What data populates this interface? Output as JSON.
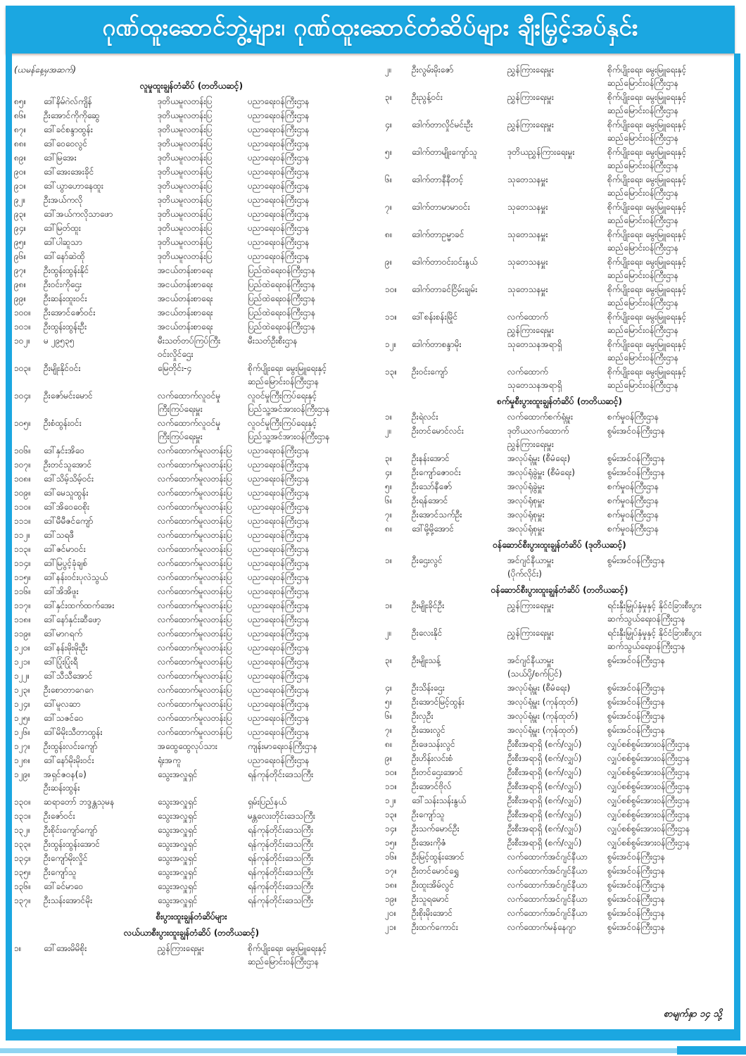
{
  "banner": {
    "title": "ဂုဏ်ထူးဆောင်ဘွဲ့များ၊ ဂုဏ်ထူးဆောင်တံဆိပ်များ ချီးမြှင့်အပ်နှင်း"
  },
  "page_note": "စာမျက်နှာ ၁၄ သို့",
  "colors": {
    "accent_blue": "#1BA7E1",
    "light_blue": "#8ed4f2",
    "text": "#161616"
  },
  "columns": {
    "left": [
      {
        "t": "note",
        "text": "(ယမန်နေ့မှအဆက်)"
      },
      {
        "t": "h",
        "text": "လူမှုထူးချွန်တံဆိပ် (တတိယဆင့်)"
      },
      {
        "t": "e",
        "n": "၈၅။",
        "name": "ဒေါ်နိမ်ဂဲလ်ကျိန်",
        "pos": "ဒုတိယမူလတန်းပြ",
        "min": "ပညာရေးဝန်ကြီးဌာန"
      },
      {
        "t": "e",
        "n": "၈၆။",
        "name": "ဦးအောင်ကိုကိုဆွေ",
        "pos": "ဒုတိယမူလတန်းပြ",
        "min": "ပညာရေးဝန်ကြီးဌာန"
      },
      {
        "t": "e",
        "n": "၈၇။",
        "name": "ဒေါ်ခင်စန္ဒာထွန်း",
        "pos": "ဒုတိယမူလတန်းပြ",
        "min": "ပညာရေးဝန်ကြီးဌာန"
      },
      {
        "t": "e",
        "n": "၈၈။",
        "name": "ဒေါ်ဝေဝေလွင်",
        "pos": "ဒုတိယမူလတန်းပြ",
        "min": "ပညာရေးဝန်ကြီးဌာန"
      },
      {
        "t": "e",
        "n": "၈၉။",
        "name": "ဒေါ်မြအေး",
        "pos": "ဒုတိယမူလတန်းပြ",
        "min": "ပညာရေးဝန်ကြီးဌာန"
      },
      {
        "t": "e",
        "n": "၉၀။",
        "name": "ဒေါ်အေးအေးခိုင်",
        "pos": "ဒုတိယမူလတန်းပြ",
        "min": "ပညာရေးဝန်ကြီးဌာန"
      },
      {
        "t": "e",
        "n": "၉၁။",
        "name": "ဒေါ်ယွာဟောနေထူး",
        "pos": "ဒုတိယမူလတန်းပြ",
        "min": "ပညာရေးဝန်ကြီးဌာန"
      },
      {
        "t": "e",
        "n": "၉၂။",
        "name": "ဦးအယ်ကလို",
        "pos": "ဒုတိယမူလတန်းပြ",
        "min": "ပညာရေးဝန်ကြီးဌာန"
      },
      {
        "t": "e",
        "n": "၉၃။",
        "name": "ဒေါ်အယ်ကလိုသာဖော",
        "pos": "ဒုတိယမူလတန်းပြ",
        "min": "ပညာရေးဝန်ကြီးဌာန"
      },
      {
        "t": "e",
        "n": "၉၄။",
        "name": "ဒေါ်မြတ်ထူး",
        "pos": "ဒုတိယမူလတန်းပြ",
        "min": "ပညာရေးဝန်ကြီးဌာန"
      },
      {
        "t": "e",
        "n": "၉၅။",
        "name": "ဒေါ်ပါဆူသာ",
        "pos": "ဒုတိယမူလတန်းပြ",
        "min": "ပညာရေးဝန်ကြီးဌာန"
      },
      {
        "t": "e",
        "n": "၉၆။",
        "name": "ဒေါ်နော်ဆဲထို",
        "pos": "ဒုတိယမူလတန်းပြ",
        "min": "ပညာရေးဝန်ကြီးဌာန"
      },
      {
        "t": "e",
        "n": "၉၇။",
        "name": "ဦးထွန်းထွန်းနိုင်",
        "pos": "အငယ်တန်းစာရေး",
        "min": "ပြည်ထဲရေးဝန်ကြီးဌာန"
      },
      {
        "t": "e",
        "n": "၉၈။",
        "name": "ဦးဝင်းကိုဌေး",
        "pos": "အငယ်တန်းစာရေး",
        "min": "ပြည်ထဲရေးဝန်ကြီးဌာန"
      },
      {
        "t": "e",
        "n": "၉၉။",
        "name": "ဦးဆန်းထူးဝင်း",
        "pos": "အငယ်တန်းစာရေး",
        "min": "ပြည်ထဲရေးဝန်ကြီးဌာန"
      },
      {
        "t": "e",
        "n": "၁၀၀။",
        "name": "ဦးအောင်ဇော်ဝင်း",
        "pos": "အငယ်တန်းစာရေး",
        "min": "ပြည်ထဲရေးဝန်ကြီးဌာန"
      },
      {
        "t": "e",
        "n": "၁၀၁။",
        "name": "ဦးထွန်းထွန်းဦး",
        "pos": "အငယ်တန်းစာရေး",
        "min": "ပြည်ထဲရေးဝန်ကြီးဌာန"
      },
      {
        "t": "e",
        "n": "၁၀၂။",
        "name": "မ ၂၉၅၃၅",
        "pos": "မီးသတ်တပ်ကြပ်ကြီး\nဝင်းလှိုင်ဌေး",
        "min": "မီးသတ်ဦးစီးဌာန"
      },
      {
        "t": "e",
        "n": "၁၀၃။",
        "name": "ဦးမျိုးနိုင်ဝင်း",
        "pos": "မြေတိုင်း-၄",
        "min": "စိုက်ပျိုးရေး၊ မွေးမြူရေးနှင့်\nဆည်မြောင်းဝန်ကြီးဌာန"
      },
      {
        "t": "e",
        "n": "၁၀၄။",
        "name": "ဦးဇော်မင်းမောင်",
        "pos": "လက်ထောက်လူဝင်မှု\nကြီးကြပ်ရေးမှူး",
        "min": "လူဝင်မှုကြီးကြပ်ရေးနှင့်\nပြည်သူ့အင်အားဝန်ကြီးဌာန"
      },
      {
        "t": "e",
        "n": "၁၀၅။",
        "name": "ဦးစံထွန်းဝင်း",
        "pos": "လက်ထောက်လူဝင်မှု\nကြီးကြပ်ရေးမှူး",
        "min": "လူဝင်မှုကြီးကြပ်ရေးနှင့်\nပြည်သူ့အင်အားဝန်ကြီးဌာန"
      },
      {
        "t": "e",
        "n": "၁၀၆။",
        "name": "ဒေါ်နှင်းအိဝေ",
        "pos": "လက်ထောက်မူလတန်းပြ",
        "min": "ပညာရေးဝန်ကြီးဌာန"
      },
      {
        "t": "e",
        "n": "၁၀၇။",
        "name": "ဦးတင်သူအောင်",
        "pos": "လက်ထောက်မူလတန်းပြ",
        "min": "ပညာရေးဝန်ကြီးဌာန"
      },
      {
        "t": "e",
        "n": "၁၀၈။",
        "name": "ဒေါ်သိမ့်သိမ့်ဝင်း",
        "pos": "လက်ထောက်မူလတန်းပြ",
        "min": "ပညာရေးဝန်ကြီးဌာန"
      },
      {
        "t": "e",
        "n": "၁၀၉။",
        "name": "ဒေါ်မေသူထွန်း",
        "pos": "လက်ထောက်မူလတန်းပြ",
        "min": "ပညာရေးဝန်ကြီးဌာန"
      },
      {
        "t": "e",
        "n": "၁၁၀။",
        "name": "ဒေါ်အိဝေဝေစိုး",
        "pos": "လက်ထောက်မူလတန်းပြ",
        "min": "ပညာရေးဝန်ကြီးဌာန"
      },
      {
        "t": "e",
        "n": "၁၁၁။",
        "name": "ဒေါ်မီမီဇင်ကျော်",
        "pos": "လက်ထောက်မူလတန်းပြ",
        "min": "ပညာရေးဝန်ကြီးဌာန"
      },
      {
        "t": "e",
        "n": "၁၁၂။",
        "name": "ဒေါ်သရဖီ",
        "pos": "လက်ထောက်မူလတန်းပြ",
        "min": "ပညာရေးဝန်ကြီးဌာန"
      },
      {
        "t": "e",
        "n": "၁၁၃။",
        "name": "ဒေါ်ဇင်မာဝင်း",
        "pos": "လက်ထောက်မူလတန်းပြ",
        "min": "ပညာရေးဝန်ကြီးဌာန"
      },
      {
        "t": "e",
        "n": "၁၁၄။",
        "name": "ဒေါ်မြပွင့်ခုံချစ်",
        "pos": "လက်ထောက်မူလတန်းပြ",
        "min": "ပညာရေးဝန်ကြီးဌာန"
      },
      {
        "t": "e",
        "n": "၁၁၅။",
        "name": "ဒေါ်နန်းဝင်းပုလဲသွယ်",
        "pos": "လက်ထောက်မူလတန်းပြ",
        "min": "ပညာရေးဝန်ကြီးဌာန"
      },
      {
        "t": "e",
        "n": "၁၁၆။",
        "name": "ဒေါ်အိအိဖူး",
        "pos": "လက်ထောက်မူလတန်းပြ",
        "min": "ပညာရေးဝန်ကြီးဌာန"
      },
      {
        "t": "e",
        "n": "၁၁၇။",
        "name": "ဒေါ်နှင်းထက်ထက်အေး",
        "pos": "လက်ထောက်မူလတန်းပြ",
        "min": "ပညာရေးဝန်ကြီးဌာန"
      },
      {
        "t": "e",
        "n": "၁၁၈။",
        "name": "ဒေါ်နော်နှင်းဆီဖော့",
        "pos": "လက်ထောက်မူလတန်းပြ",
        "min": "ပညာရေးဝန်ကြီးဌာန"
      },
      {
        "t": "e",
        "n": "၁၁၉။",
        "name": "ဒေါ်မာဂရက်",
        "pos": "လက်ထောက်မူလတန်းပြ",
        "min": "ပညာရေးဝန်ကြီးဌာန"
      },
      {
        "t": "e",
        "n": "၁၂၀။",
        "name": "ဒေါ်နန်းမိုးမိုးဦး",
        "pos": "လက်ထောက်မူလတန်းပြ",
        "min": "ပညာရေးဝန်ကြီးဌာန"
      },
      {
        "t": "e",
        "n": "၁၂၁။",
        "name": "ဒေါ်ပြုံးပြုံးရီ",
        "pos": "လက်ထောက်မူလတန်းပြ",
        "min": "ပညာရေးဝန်ကြီးဌာန"
      },
      {
        "t": "e",
        "n": "၁၂၂။",
        "name": "ဒေါ်သီသီအောင်",
        "pos": "လက်ထောက်မူလတန်းပြ",
        "min": "ပညာရေးဝန်ကြီးဌာန"
      },
      {
        "t": "e",
        "n": "၁၂၃။",
        "name": "ဦးစောတာဂေဂေ",
        "pos": "လက်ထောက်မူလတန်းပြ",
        "min": "ပညာရေးဝန်ကြီးဌာန"
      },
      {
        "t": "e",
        "n": "၁၂၄။",
        "name": "ဒေါ်မူလဆာ",
        "pos": "လက်ထောက်မူလတန်းပြ",
        "min": "ပညာရေးဝန်ကြီးဌာန"
      },
      {
        "t": "e",
        "n": "၁၂၅။",
        "name": "ဒေါ်သဇင်ဝေ",
        "pos": "လက်ထောက်မူလတန်းပြ",
        "min": "ပညာရေးဝန်ကြီးဌာန"
      },
      {
        "t": "e",
        "n": "၁၂၆။",
        "name": "ဒေါ်မိမိုးသီတာထွန်း",
        "pos": "လက်ထောက်မူလတန်းပြ",
        "min": "ပညာရေးဝန်ကြီးဌာန"
      },
      {
        "t": "e",
        "n": "၁၂၇။",
        "name": "ဦးထွန်းလင်းကျော်",
        "pos": "အထွေထွေလုပ်သား",
        "min": "ကျန်းမာရေးဝန်ကြီးဌာန"
      },
      {
        "t": "e",
        "n": "၁၂၈။",
        "name": "ဒေါ်နော်မိုးမိုးဝင်း",
        "pos": "ရုံးအကူ",
        "min": "ပညာရေးဝန်ကြီးဌာန"
      },
      {
        "t": "e",
        "n": "၁၂၉။",
        "name": "အရှင်ဇဝန(ခ)\nဦးဆန်းထွန်း",
        "pos": "သွေးအလှူရှင်",
        "min": "ရန်ကုန်တိုင်းဒေသကြီး"
      },
      {
        "t": "e",
        "n": "၁၃၀။",
        "name": "ဆရာတော် ဘဒ္ဒန္တသုမန",
        "pos": "သွေးအလှူရှင်",
        "min": "ရှမ်းပြည်နယ်"
      },
      {
        "t": "e",
        "n": "၁၃၁။",
        "name": "ဦးဇော်ဝင်း",
        "pos": "သွေးအလှူရှင်",
        "min": "မန္တလေးတိုင်းဒေသကြီး"
      },
      {
        "t": "e",
        "n": "၁၃၂။",
        "name": "ဦးစိုင်းကျော်ကျော်",
        "pos": "သွေးအလှူရှင်",
        "min": "ရန်ကုန်တိုင်းဒေသကြီး"
      },
      {
        "t": "e",
        "n": "၁၃၃။",
        "name": "ဦးထွန်းထွန်းအောင်",
        "pos": "သွေးအလှူရှင်",
        "min": "ရန်ကုန်တိုင်းဒေသကြီး"
      },
      {
        "t": "e",
        "n": "၁၃၄။",
        "name": "ဦးကျော်မိုးလှိုင်",
        "pos": "သွေးအလှူရှင်",
        "min": "ရန်ကုန်တိုင်းဒေသကြီး"
      },
      {
        "t": "e",
        "n": "၁၃၅။",
        "name": "ဦးကျော်သူ",
        "pos": "သွေးအလှူရှင်",
        "min": "ရန်ကုန်တိုင်းဒေသကြီး"
      },
      {
        "t": "e",
        "n": "၁၃၆။",
        "name": "ဒေါ်ခင်မာဝေ",
        "pos": "သွေးအလှူရှင်",
        "min": "ရန်ကုန်တိုင်းဒေသကြီး"
      },
      {
        "t": "e",
        "n": "၁၃၇။",
        "name": "ဦးသန်းအောင်မိုး",
        "pos": "သွေးအလှူရှင်",
        "min": "ရန်ကုန်တိုင်းဒေသကြီး"
      },
      {
        "t": "h",
        "text": "စီးပွားထူးချွန်တံဆိပ်များ"
      },
      {
        "t": "h",
        "text": "လယ်ယာစီးပွားထူးချွန်တံဆိပ် (တတိယဆင့်)"
      },
      {
        "t": "e",
        "n": "၁။",
        "name": "ဒေါ်အေးမိမိစိုး",
        "pos": "ညွှန်ကြားရေးမှူး",
        "min": "စိုက်ပျိုးရေး၊ မွေးမြူရေးနှင့်\nဆည်မြောင်းဝန်ကြီးဌာန"
      }
    ],
    "right": [
      {
        "t": "e",
        "n": "၂။",
        "name": "ဦးလွမ်းမိုးဇော်",
        "pos": "ညွှန်ကြားရေးမှူး",
        "min": "စိုက်ပျိုးရေး၊ မွေးမြူရေးနှင့်\nဆည်မြောင်းဝန်ကြီးဌာန"
      },
      {
        "t": "e",
        "n": "၃။",
        "name": "ဦးညွန့်ဝင်း",
        "pos": "ညွှန်ကြားရေးမှူး",
        "min": "စိုက်ပျိုးရေး၊ မွေးမြူရေးနှင့်\nဆည်မြောင်းဝန်ကြီးဌာန"
      },
      {
        "t": "e",
        "n": "၄။",
        "name": "ဒေါက်တာလှိုင်မင်းဦး",
        "pos": "ညွှန်ကြားရေးမှူး",
        "min": "စိုက်ပျိုးရေး၊ မွေးမြူရေးနှင့်\nဆည်မြောင်းဝန်ကြီးဌာန"
      },
      {
        "t": "e",
        "n": "၅။",
        "name": "ဒေါက်တာမျိုးကျော်သူ",
        "pos": "ဒုတိယညွှန်ကြားရေးမှူး",
        "min": "စိုက်ပျိုးရေး၊ မွေးမြူရေးနှင့်\nဆည်မြောင်းဝန်ကြီးဌာန"
      },
      {
        "t": "e",
        "n": "၆။",
        "name": "ဒေါက်တာနီနီတင့်",
        "pos": "သုတေသနမှူး",
        "min": "စိုက်ပျိုးရေး၊ မွေးမြူရေးနှင့်\nဆည်မြောင်းဝန်ကြီးဌာန"
      },
      {
        "t": "e",
        "n": "၇။",
        "name": "ဒေါက်တာမာမာဝင်း",
        "pos": "သုတေသနမှူး",
        "min": "စိုက်ပျိုးရေး၊ မွေးမြူရေးနှင့်\nဆည်မြောင်းဝန်ကြီးဌာန"
      },
      {
        "t": "e",
        "n": "၈။",
        "name": "ဒေါက်တာဥမ္မာခင်",
        "pos": "သုတေသနမှူး",
        "min": "စိုက်ပျိုးရေး၊ မွေးမြူရေးနှင့်\nဆည်မြောင်းဝန်ကြီးဌာန"
      },
      {
        "t": "e",
        "n": "၉။",
        "name": "ဒေါက်တာဝင်းဝင်းနွယ်",
        "pos": "သုတေသနမှူး",
        "min": "စိုက်ပျိုးရေး၊ မွေးမြူရေးနှင့်\nဆည်မြောင်းဝန်ကြီးဌာန"
      },
      {
        "t": "e",
        "n": "၁၀။",
        "name": "ဒေါက်တာခင်ငြိမ်းချမ်း",
        "pos": "သုတေသနမှူး",
        "min": "စိုက်ပျိုးရေး၊ မွေးမြူရေးနှင့်\nဆည်မြောင်းဝန်ကြီးဌာန"
      },
      {
        "t": "e",
        "n": "၁၁။",
        "name": "ဒေါ်စန်းစန်းမြိုင်",
        "pos": "လက်ထောက်\nညွှန်ကြားရေးမှူး",
        "min": "စိုက်ပျိုးရေး၊ မွေးမြူရေးနှင့်\nဆည်မြောင်းဝန်ကြီးဌာန"
      },
      {
        "t": "e",
        "n": "၁၂။",
        "name": "ဒေါက်တာစန္ဒာမိုး",
        "pos": "သုတေသနအရာရှိ",
        "min": "စိုက်ပျိုးရေး၊ မွေးမြူရေးနှင့်\nဆည်မြောင်းဝန်ကြီးဌာန"
      },
      {
        "t": "e",
        "n": "၁၃။",
        "name": "ဦးဝင်းကျော်",
        "pos": "လက်ထောက်\nသုတေသနအရာရှိ",
        "min": "စိုက်ပျိုးရေး၊ မွေးမြူရေးနှင့်\nဆည်မြောင်းဝန်ကြီးဌာန"
      },
      {
        "t": "h",
        "text": "စက်မှုစီးပွားထူးချွန်တံဆိပ် (တတိယဆင့်)"
      },
      {
        "t": "e",
        "n": "၁။",
        "name": "ဦးရဲလင်း",
        "pos": "လက်ထောက်စက်ရုံမှူး",
        "min": "စက်မှုဝန်ကြီးဌာန"
      },
      {
        "t": "e",
        "n": "၂။",
        "name": "ဦးတင်မောင်လင်း",
        "pos": "ဒုတိယလက်ထောက်\nညွှန်ကြားရေးမှူး",
        "min": "စွမ်းအင်ဝန်ကြီးဌာန"
      },
      {
        "t": "e",
        "n": "၃။",
        "name": "ဦးနန်းအောင်",
        "pos": "အလုပ်ရုံမှူး (စီမံရေး)",
        "min": "စွမ်းအင်ဝန်ကြီးဌာန"
      },
      {
        "t": "e",
        "n": "၄။",
        "name": "ဦးကျော်ဇောဝင်း",
        "pos": "အလုပ်ရုံခွဲမှူး (စီမံရေး)",
        "min": "စွမ်းအင်ဝန်ကြီးဌာန"
      },
      {
        "t": "e",
        "n": "၅။",
        "name": "ဦးသော်နီဇော်",
        "pos": "အလုပ်ရုံခွဲမှူး",
        "min": "စက်မှုဝန်ကြီးဌာန"
      },
      {
        "t": "e",
        "n": "၆။",
        "name": "ဦးရန်အောင်",
        "pos": "အလုပ်ရုံစုမှူး",
        "min": "စက်မှုဝန်ကြီးဌာန"
      },
      {
        "t": "e",
        "n": "၇။",
        "name": "ဦးအောင်သက်ဦး",
        "pos": "အလုပ်ရုံစုမှူး",
        "min": "စက်မှုဝန်ကြီးဌာန"
      },
      {
        "t": "e",
        "n": "၈။",
        "name": "ဒေါ်မို့မို့အောင်",
        "pos": "အလုပ်ရုံစုမှူး",
        "min": "စက်မှုဝန်ကြီးဌာန"
      },
      {
        "t": "h",
        "text": "ဝန်ဆောင်စီးပွားထူးချွန်တံဆိပ် (ဒုတိယဆင့်)"
      },
      {
        "t": "e",
        "n": "၁။",
        "name": "ဦးဌေးလွင်",
        "pos": "အင်ဂျင်နီယာမှူး\n(ပိုက်လိုင်း)",
        "min": "စွမ်းအင်ဝန်ကြီးဌာန"
      },
      {
        "t": "h",
        "text": "ဝန်ဆောင်စီးပွားထူးချွန်တံဆိပ် (တတိယဆင့်)"
      },
      {
        "t": "e",
        "n": "၁။",
        "name": "ဦးမျိုးခိုင်ဦး",
        "pos": "ညွှန်ကြားရေးမှူး",
        "min": "ရင်းနှီးမြှုပ်နှံမှုနှင့် နိုင်ငံခြားစီးပွား\nဆက်သွယ်ရေးဝန်ကြီးဌာန"
      },
      {
        "t": "e",
        "n": "၂။",
        "name": "ဦးလေးနိုင်",
        "pos": "ညွှန်ကြားရေးမှူး",
        "min": "ရင်းနှီးမြှုပ်နှံမှုနှင့် နိုင်ငံခြားစီးပွား\nဆက်သွယ်ရေးဝန်ကြီးဌာန"
      },
      {
        "t": "e",
        "n": "၃။",
        "name": "ဦးမျိုးသန့်",
        "pos": "အင်ဂျင်နီယာမှူး\n(သယ်ပို့/စက်ပြင်)",
        "min": "စွမ်းအင်ဝန်ကြီးဌာန"
      },
      {
        "t": "e",
        "n": "၄။",
        "name": "ဦးသိန်းဌေး",
        "pos": "အလုပ်ရုံမှူး (စီမံရေး)",
        "min": "စွမ်းအင်ဝန်ကြီးဌာန"
      },
      {
        "t": "e",
        "n": "၅။",
        "name": "ဦးအောင်မြင့်ထွန်း",
        "pos": "အလုပ်ရုံမှူး (ကုန်ထုတ်)",
        "min": "စွမ်းအင်ဝန်ကြီးဌာန"
      },
      {
        "t": "e",
        "n": "၆။",
        "name": "ဦးလှဦး",
        "pos": "အလုပ်ရုံမှူး (ကုန်ထုတ်)",
        "min": "စွမ်းအင်ဝန်ကြီးဌာန"
      },
      {
        "t": "e",
        "n": "၇။",
        "name": "ဦးအေးလွင်",
        "pos": "အလုပ်ရုံမှူး (ကုန်ထုတ်)",
        "min": "စွမ်းအင်ဝန်ကြီးဌာန"
      },
      {
        "t": "e",
        "n": "၈။",
        "name": "ဦးဖေသန်းလွင်",
        "pos": "ဦးစီးအရာရှိ (စက်/လျှပ်)",
        "min": "လျှပ်စစ်စွမ်းအားဝန်ကြီးဌာန"
      },
      {
        "t": "e",
        "n": "၉။",
        "name": "ဦးဟိန်းလင်းစံ",
        "pos": "ဦးစီးအရာရှိ (စက်/လျှပ်)",
        "min": "လျှပ်စစ်စွမ်းအားဝန်ကြီးဌာန"
      },
      {
        "t": "e",
        "n": "၁၀။",
        "name": "ဦးတင်ဌေးအောင်",
        "pos": "ဦးစီးအရာရှိ (စက်/လျှပ်)",
        "min": "လျှပ်စစ်စွမ်းအားဝန်ကြီးဌာန"
      },
      {
        "t": "e",
        "n": "၁၁။",
        "name": "ဦးအောင်ဗိုလ်",
        "pos": "ဦးစီးအရာရှိ (စက်/လျှပ်)",
        "min": "လျှပ်စစ်စွမ်းအားဝန်ကြီးဌာန"
      },
      {
        "t": "e",
        "n": "၁၂။",
        "name": "ဒေါ်သန်းသန်းနွယ်",
        "pos": "ဦးစီးအရာရှိ (စက်/လျှပ်)",
        "min": "လျှပ်စစ်စွမ်းအားဝန်ကြီးဌာန"
      },
      {
        "t": "e",
        "n": "၁၃။",
        "name": "ဦးကျော်သူ",
        "pos": "ဦးစီးအရာရှိ (စက်/လျှပ်)",
        "min": "လျှပ်စစ်စွမ်းအားဝန်ကြီးဌာန"
      },
      {
        "t": "e",
        "n": "၁၄။",
        "name": "ဦးသက်မောင်ဦး",
        "pos": "ဦးစီးအရာရှိ (စက်/လျှပ်)",
        "min": "လျှပ်စစ်စွမ်းအားဝန်ကြီးဌာန"
      },
      {
        "t": "e",
        "n": "၁၅။",
        "name": "ဦးအေးကိုဇံ",
        "pos": "ဦးစီးအရာရှိ (စက်/လျှပ်)",
        "min": "လျှပ်စစ်စွမ်းအားဝန်ကြီးဌာန"
      },
      {
        "t": "e",
        "n": "၁၆။",
        "name": "ဦးမြင့်ထွန်းအောင်",
        "pos": "လက်ထောက်အင်ဂျင်နီယာ",
        "min": "စွမ်းအင်ဝန်ကြီးဌာန"
      },
      {
        "t": "e",
        "n": "၁၇။",
        "name": "ဦးတင်မောင်ရွှေ",
        "pos": "လက်ထောက်အင်ဂျင်နီယာ",
        "min": "စွမ်းအင်ဝန်ကြီးဌာန"
      },
      {
        "t": "e",
        "n": "၁၈။",
        "name": "ဦးထူးအိမ်လွင်",
        "pos": "လက်ထောက်အင်ဂျင်နီယာ",
        "min": "စွမ်းအင်ဝန်ကြီးဌာန"
      },
      {
        "t": "e",
        "n": "၁၉။",
        "name": "ဦးသူရမောင်",
        "pos": "လက်ထောက်အင်ဂျင်နီယာ",
        "min": "စွမ်းအင်ဝန်ကြီးဌာန"
      },
      {
        "t": "e",
        "n": "၂၀။",
        "name": "ဦးစိုးမိုးအောင်",
        "pos": "လက်ထောက်အင်ဂျင်နီယာ",
        "min": "စွမ်းအင်ဝန်ကြီးဌာန"
      },
      {
        "t": "e",
        "n": "၂၁။",
        "name": "ဦးထက်ကောင်း",
        "pos": "လက်ထောက်မန်နေဂျာ",
        "min": "စွမ်းအင်ဝန်ကြီးဌာန"
      }
    ]
  }
}
